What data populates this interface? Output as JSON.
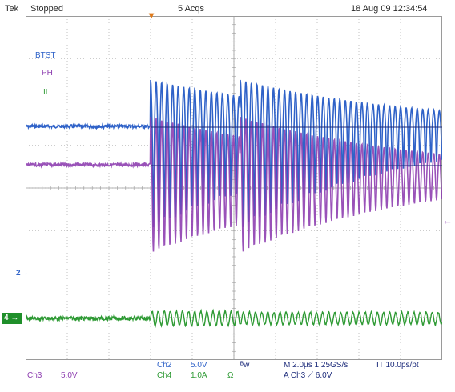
{
  "header": {
    "brand": "Tek",
    "run_state": "Stopped",
    "acquisitions": "5 Acqs",
    "timestamp": "18 Aug 09 12:34:54"
  },
  "traces": [
    {
      "name": "BTST",
      "color": "#2f62c8"
    },
    {
      "name": "PH",
      "color": "#8e3fb0"
    },
    {
      "name": "IL",
      "color": "#2e9a34"
    }
  ],
  "markers": {
    "ch2_ref": "2",
    "ch4_ref": "4",
    "ch2_arrow": "→",
    "ch4_arrow": "→",
    "trigger_level": "←",
    "trigger_pos": "▾"
  },
  "readout": {
    "ch3_name": "Ch3",
    "ch3_scale": "5.0V",
    "ch2_name": "Ch2",
    "ch2_scale": "5.0V",
    "ch4_name": "Ch4",
    "ch4_scale": "1.0A",
    "ch4_coupling": "Ω",
    "bw_symbol": "ᴮw",
    "horizontal": "M 2.0µs 1.25GS/s",
    "interp": "IT 10.0ps/pt",
    "trigger": "A  Ch3  ⟋  6.0V"
  },
  "colors": {
    "grid": "#9a9a9a",
    "blue": "#2f62c8",
    "purple": "#8e3fb0",
    "green": "#2e9a34",
    "navy": "#1b2a7a"
  }
}
